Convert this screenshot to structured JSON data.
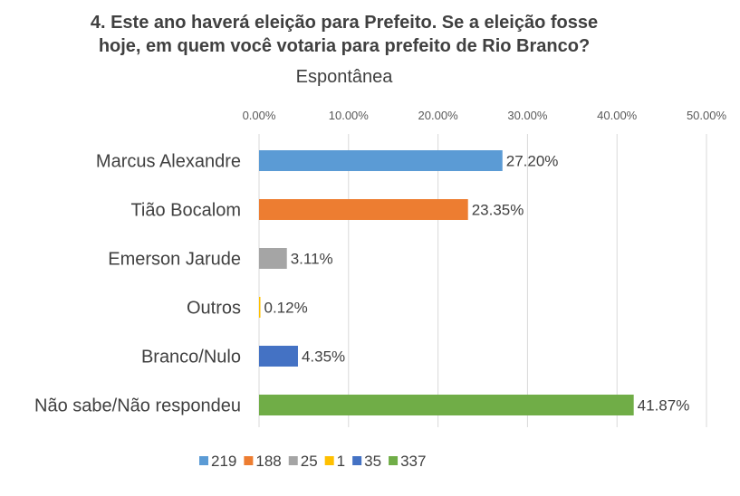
{
  "chart_data": {
    "type": "bar",
    "orientation": "horizontal",
    "title_lines": [
      "4. Este ano haverá eleição para Prefeito. Se a eleição fosse",
      "hoje, em quem você votaria para prefeito de Rio Branco?"
    ],
    "subtitle": "Espontânea",
    "categories": [
      "Marcus Alexandre",
      "Tião Bocalom",
      "Emerson Jarude",
      "Outros",
      "Branco/Nulo",
      "Não sabe/Não respondeu"
    ],
    "values": [
      27.2,
      23.35,
      3.11,
      0.12,
      4.35,
      41.87
    ],
    "value_labels": [
      "27.20%",
      "23.35%",
      "3.11%",
      "0.12%",
      "4.35%",
      "41.87%"
    ],
    "colors": [
      "#5B9BD5",
      "#ED7D31",
      "#A5A5A5",
      "#FFC000",
      "#4472C4",
      "#70AD47"
    ],
    "xlim": [
      0,
      50
    ],
    "x_ticks": [
      0,
      10,
      20,
      30,
      40,
      50
    ],
    "x_tick_labels": [
      "0.00%",
      "10.00%",
      "20.00%",
      "30.00%",
      "40.00%",
      "50.00%"
    ],
    "x_axis_position": "top",
    "grid": true,
    "legend": {
      "placement": "bottom",
      "entries": [
        "219",
        "188",
        "25",
        "1",
        "35",
        "337"
      ]
    }
  }
}
